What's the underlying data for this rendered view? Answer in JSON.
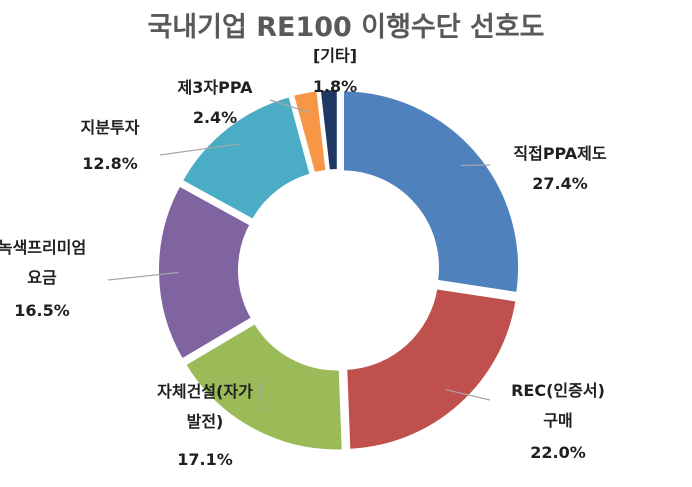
{
  "chart_data": {
    "type": "donut",
    "title": "국내기업 RE100 이행수단 선호도",
    "unit": "%",
    "slices": [
      {
        "label": "직접PPA제도",
        "value": 27.4,
        "value_text": "27.4%",
        "color": "#4f81bd"
      },
      {
        "label": "REC(인증서) 구매",
        "value": 22.0,
        "value_text": "22.0%",
        "color": "#c0504d"
      },
      {
        "label": "자체건설(자가 발전)",
        "value": 17.1,
        "value_text": "17.1%",
        "color": "#9bbb59"
      },
      {
        "label": "녹색프리미엄 요금",
        "value": 16.5,
        "value_text": "16.5%",
        "color": "#8064a2"
      },
      {
        "label": "지분투자",
        "value": 12.8,
        "value_text": "12.8%",
        "color": "#4bacc6"
      },
      {
        "label": "제3자PPA",
        "value": 2.4,
        "value_text": "2.4%",
        "color": "#f79646"
      },
      {
        "label": "[기타]",
        "value": 1.8,
        "value_text": "1.8%",
        "color": "#1f3864"
      }
    ]
  }
}
